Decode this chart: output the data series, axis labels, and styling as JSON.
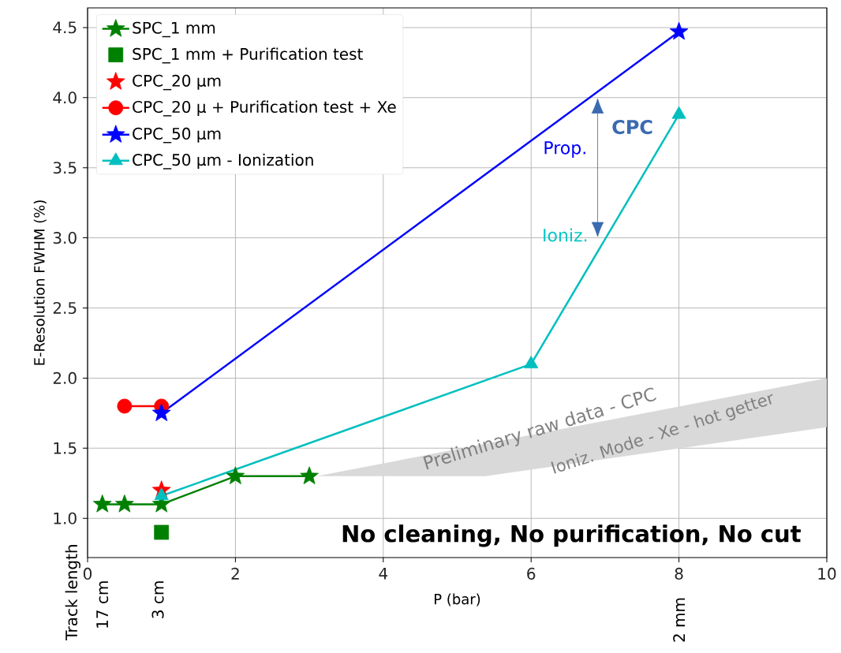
{
  "chart_data": {
    "type": "line",
    "xlabel": "P (bar)",
    "ylabel": "E-Resolution FWHM (%)",
    "xlim": [
      0,
      10
    ],
    "ylim": [
      0.72,
      4.64
    ],
    "xticks": [
      0,
      2,
      4,
      6,
      8,
      10
    ],
    "yticks": [
      {
        "value": 1.0,
        "label": "1.0"
      },
      {
        "value": 1.5,
        "label": "1.5"
      },
      {
        "value": 2.0,
        "label": "2.0"
      },
      {
        "value": 2.5,
        "label": "2.5"
      },
      {
        "value": 3.0,
        "label": "3.0"
      },
      {
        "value": 3.5,
        "label": "3.5"
      },
      {
        "value": 4.0,
        "label": "4.0"
      },
      {
        "value": 4.5,
        "label": "4.5"
      }
    ],
    "grid": true,
    "legend": "top left",
    "series": [
      {
        "name": "SPC_1 mm",
        "type": "line",
        "color": "#008000",
        "marker": "star",
        "x": [
          0.2,
          0.5,
          1,
          2,
          3
        ],
        "values": [
          1.1,
          1.1,
          1.1,
          1.3,
          1.3
        ]
      },
      {
        "name": "SPC_1 mm + Purification test",
        "type": "scatter",
        "color": "#008000",
        "marker": "square",
        "x": [
          1
        ],
        "values": [
          0.9
        ]
      },
      {
        "name": "CPC_20 µm",
        "type": "scatter",
        "color": "#ff0000",
        "marker": "star",
        "x": [
          1
        ],
        "values": [
          1.2
        ]
      },
      {
        "name": "CPC_20 µ + Purification test + Xe",
        "type": "line",
        "color": "#ff0000",
        "marker": "circle",
        "x": [
          0.5,
          1
        ],
        "values": [
          1.8,
          1.8
        ]
      },
      {
        "name": "CPC_50 µm",
        "type": "line",
        "color": "#0000ff",
        "marker": "star",
        "x": [
          1,
          8
        ],
        "values": [
          1.75,
          4.47
        ]
      },
      {
        "name": "CPC_50 µm - Ionization",
        "type": "line",
        "color": "#00bfbf",
        "marker": "triangle",
        "x": [
          1,
          6,
          8
        ],
        "values": [
          1.16,
          2.1,
          3.88
        ]
      }
    ],
    "annotations": [
      "CPC",
      "Prop.",
      "Ioniz.",
      "Preliminary raw data - CPC",
      "Ioniz. Mode - Xe - hot getter",
      "No cleaning, No purification, No cut",
      "Track length",
      "17 cm",
      "3 cm",
      "2 mm"
    ]
  }
}
